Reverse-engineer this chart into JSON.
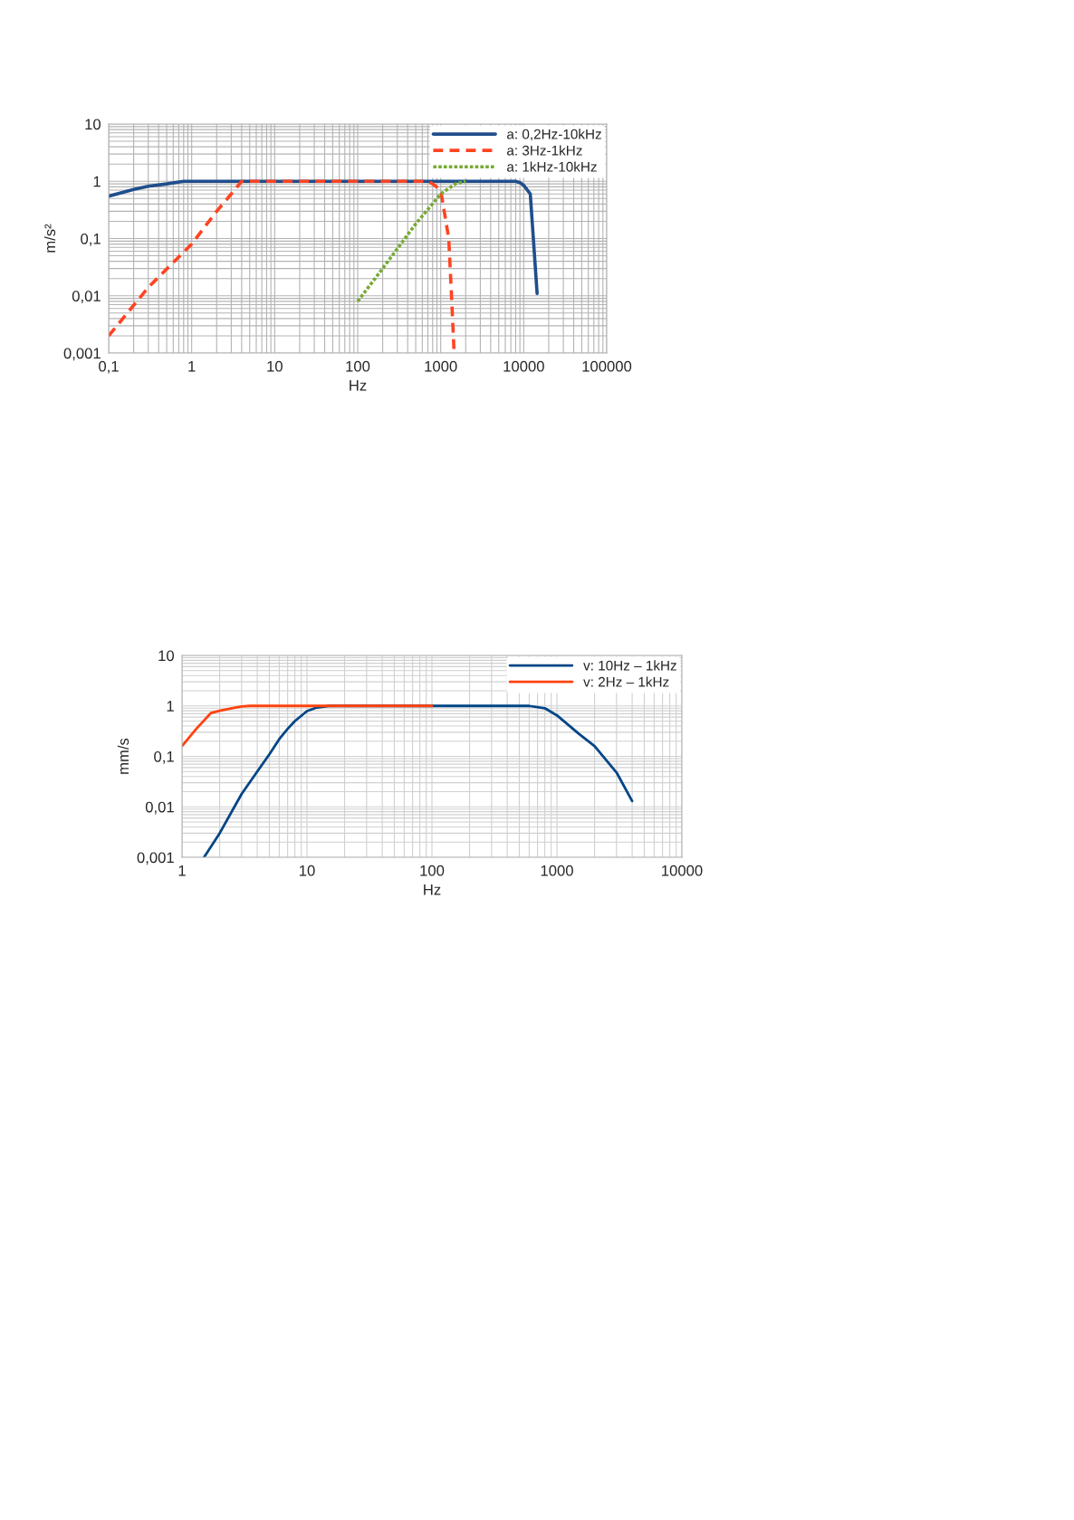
{
  "chart_data": [
    {
      "type": "line",
      "xlabel": "Hz",
      "ylabel": "m/s²",
      "log": "xy",
      "grid": true,
      "legend": "top right",
      "xlim": [
        0.1,
        100000
      ],
      "ylim": [
        0.001,
        10
      ],
      "xticks": [
        {
          "value": 0.1,
          "label": "0,1"
        },
        1,
        10,
        100,
        1000,
        10000,
        100000
      ],
      "yticks": [
        {
          "value": 0.001,
          "label": "0,001"
        },
        {
          "value": 0.01,
          "label": "0,01"
        },
        {
          "value": 0.1,
          "label": "0,1"
        },
        1,
        10
      ],
      "series": [
        {
          "name": "a: 0,2Hz-10kHz",
          "color": "#1f4e8c",
          "line_style": "solid",
          "x": [
            0.1,
            0.2,
            0.3,
            0.5,
            0.8,
            1,
            10,
            100,
            1000,
            8000,
            9000,
            10000,
            12000,
            14500
          ],
          "values": [
            0.55,
            0.72,
            0.82,
            0.9,
            1.0,
            1.0,
            1.0,
            1.0,
            1.0,
            1.0,
            0.95,
            0.85,
            0.6,
            0.011
          ]
        },
        {
          "name": "a: 3Hz-1kHz",
          "color": "#ff4422",
          "line_style": "dashed",
          "x": [
            0.1,
            0.3,
            1,
            2,
            3,
            4,
            10,
            100,
            700,
            800,
            1000,
            1250,
            1350,
            1450
          ],
          "values": [
            0.002,
            0.014,
            0.08,
            0.3,
            0.6,
            1.0,
            1.0,
            1.0,
            1.0,
            0.9,
            0.7,
            0.1,
            0.01,
            0.001
          ]
        },
        {
          "name": "a: 1kHz-10kHz",
          "color": "#77aa33",
          "line_style": "dotted",
          "x": [
            100,
            200,
            500,
            1000,
            1500,
            2000
          ],
          "values": [
            0.008,
            0.03,
            0.18,
            0.6,
            0.9,
            1.0
          ]
        }
      ]
    },
    {
      "type": "line",
      "xlabel": "Hz",
      "ylabel": "mm/s",
      "log": "xy",
      "grid": true,
      "legend": "top right",
      "xlim": [
        1,
        10000
      ],
      "ylim": [
        0.001,
        10
      ],
      "xticks": [
        1,
        10,
        100,
        1000,
        10000
      ],
      "yticks": [
        {
          "value": 0.001,
          "label": "0,001"
        },
        {
          "value": 0.01,
          "label": "0,01"
        },
        {
          "value": 0.1,
          "label": "0,1"
        },
        1,
        10
      ],
      "series": [
        {
          "name": "v: 10Hz – 1kHz",
          "color": "#004586",
          "x": [
            1.5,
            2,
            3,
            4,
            5,
            6,
            7,
            8,
            10,
            12,
            15,
            100,
            600,
            800,
            1000,
            1500,
            2000,
            3000,
            4000
          ],
          "values": [
            0.001,
            0.003,
            0.018,
            0.05,
            0.11,
            0.22,
            0.35,
            0.5,
            0.79,
            0.93,
            1.0,
            1.0,
            1.0,
            0.9,
            0.65,
            0.28,
            0.16,
            0.048,
            0.013
          ]
        },
        {
          "name": "v: 2Hz – 1kHz",
          "color": "#ff420e",
          "x": [
            1,
            1.3,
            1.7,
            2,
            2.5,
            3,
            3.5,
            10,
            100
          ],
          "values": [
            0.16,
            0.35,
            0.72,
            0.8,
            0.9,
            0.97,
            1.0,
            1.0,
            1.0
          ]
        }
      ]
    }
  ]
}
